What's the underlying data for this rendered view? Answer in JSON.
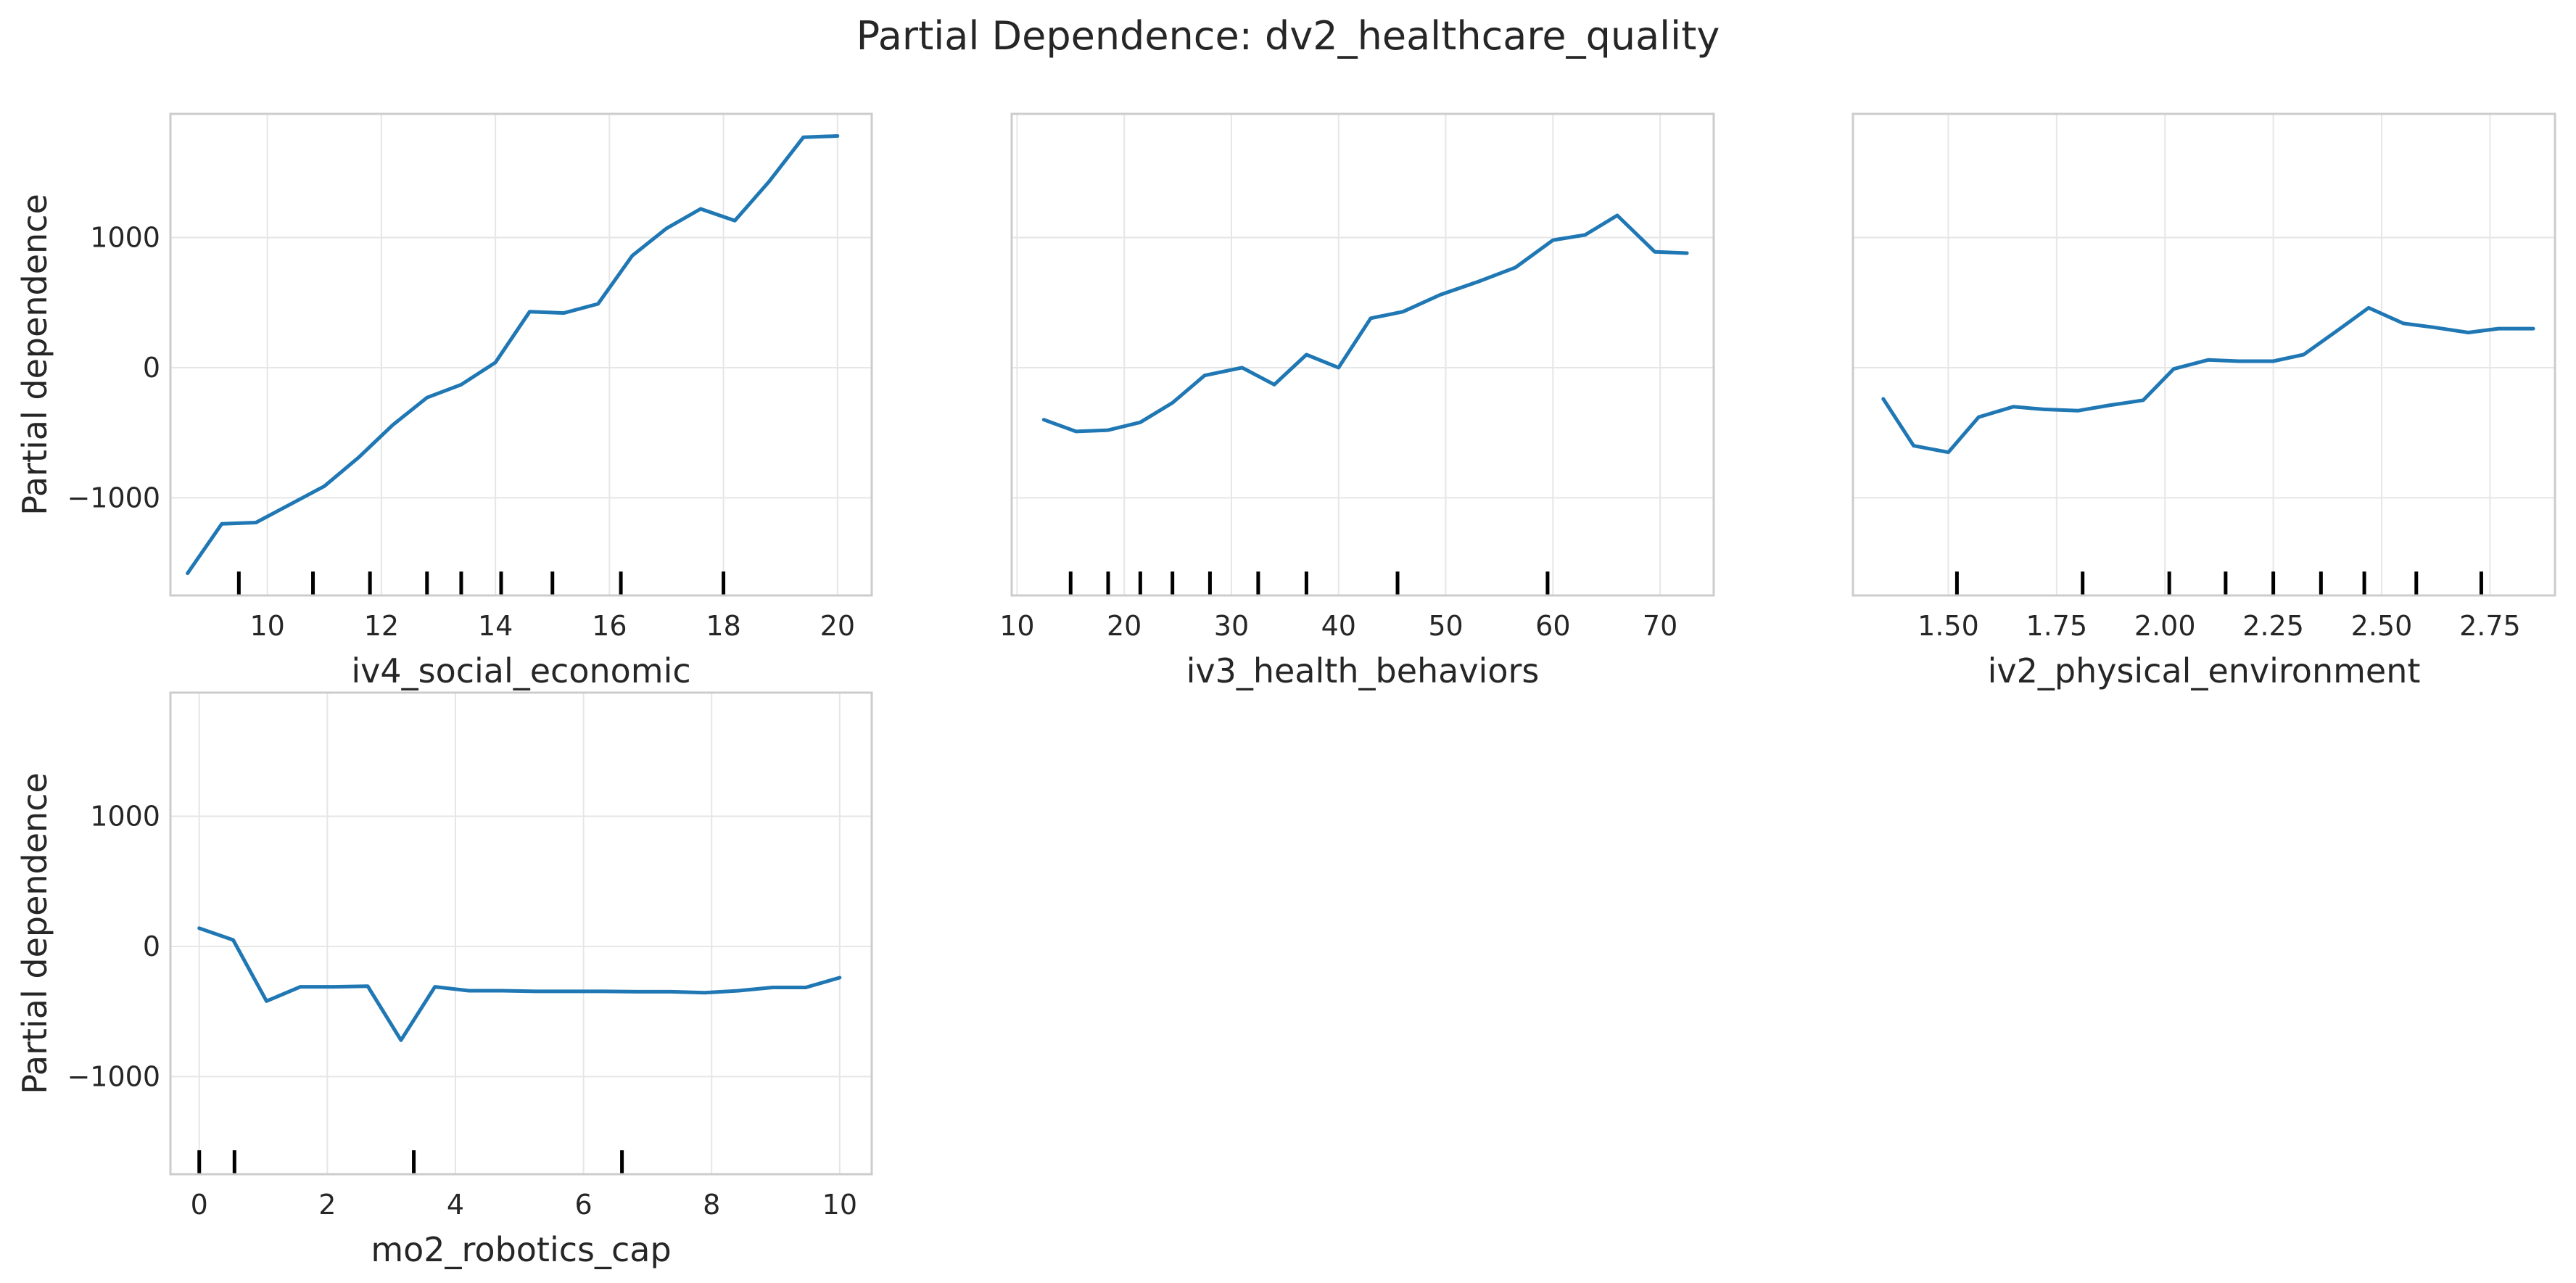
{
  "title": "Partial Dependence: dv2_healthcare_quality",
  "colors": {
    "line": "#1f77b4",
    "grid": "#e6e6e6",
    "frame": "#cccccc",
    "rug": "#000000",
    "text": "#262626"
  },
  "chart_data": [
    {
      "type": "line",
      "xlabel": "iv4_social_economic",
      "ylabel": "Partial dependence",
      "xlim": [
        8.3,
        20.6
      ],
      "ylim": [
        -1750,
        1950
      ],
      "xticks": [
        10,
        12,
        14,
        16,
        18,
        20
      ],
      "yticks": [
        -1000,
        0,
        1000
      ],
      "show_yticklabels": true,
      "grid": true,
      "x": [
        8.6,
        9.2,
        9.8,
        10.4,
        11.0,
        11.6,
        12.2,
        12.8,
        13.4,
        14.0,
        14.6,
        15.2,
        15.8,
        16.4,
        17.0,
        17.6,
        18.2,
        18.8,
        19.4,
        20.0
      ],
      "y": [
        -1580,
        -1200,
        -1190,
        -1050,
        -910,
        -690,
        -440,
        -230,
        -130,
        40,
        430,
        420,
        490,
        860,
        1070,
        1220,
        1130,
        1430,
        1770,
        1780
      ],
      "rug_ticks": [
        9.5,
        10.8,
        11.8,
        12.8,
        13.4,
        14.1,
        15.0,
        16.2,
        18.0
      ]
    },
    {
      "type": "line",
      "xlabel": "iv3_health_behaviors",
      "ylabel": "",
      "xlim": [
        9.5,
        75
      ],
      "ylim": [
        -1750,
        1950
      ],
      "xticks": [
        10,
        20,
        30,
        40,
        50,
        60,
        70
      ],
      "yticks": [
        -1000,
        0,
        1000
      ],
      "show_yticklabels": false,
      "grid": true,
      "x": [
        12.5,
        15.5,
        18.5,
        21.5,
        24.5,
        27.5,
        31.0,
        34.0,
        37.0,
        40.0,
        43.0,
        46.0,
        49.5,
        53.0,
        56.5,
        60.0,
        63.0,
        66.0,
        69.5,
        72.5
      ],
      "y": [
        -400,
        -490,
        -480,
        -420,
        -270,
        -60,
        0,
        -130,
        100,
        0,
        380,
        430,
        560,
        660,
        770,
        980,
        1020,
        1170,
        890,
        880
      ],
      "rug_ticks": [
        15.0,
        18.5,
        21.5,
        24.5,
        28.0,
        32.5,
        37.0,
        45.5,
        59.5
      ]
    },
    {
      "type": "line",
      "xlabel": "iv2_physical_environment",
      "ylabel": "",
      "xlim": [
        1.28,
        2.9
      ],
      "ylim": [
        -1750,
        1950
      ],
      "xticks": [
        1.5,
        1.75,
        2.0,
        2.25,
        2.5,
        2.75
      ],
      "xtick_labels": [
        "1.50",
        "1.75",
        "2.00",
        "2.25",
        "2.50",
        "2.75"
      ],
      "yticks": [
        -1000,
        0,
        1000
      ],
      "show_yticklabels": false,
      "grid": true,
      "x": [
        1.35,
        1.42,
        1.5,
        1.57,
        1.65,
        1.72,
        1.8,
        1.87,
        1.95,
        2.02,
        2.1,
        2.17,
        2.25,
        2.32,
        2.4,
        2.47,
        2.55,
        2.62,
        2.7,
        2.77,
        2.85
      ],
      "y": [
        -240,
        -600,
        -650,
        -380,
        -300,
        -320,
        -330,
        -290,
        -250,
        -10,
        60,
        50,
        50,
        100,
        290,
        460,
        340,
        310,
        270,
        300,
        300
      ],
      "rug_ticks": [
        1.52,
        1.81,
        2.01,
        2.14,
        2.25,
        2.36,
        2.46,
        2.58,
        2.73
      ]
    },
    {
      "type": "line",
      "xlabel": "mo2_robotics_cap",
      "ylabel": "Partial dependence",
      "xlim": [
        -0.45,
        10.5
      ],
      "ylim": [
        -1750,
        1950
      ],
      "xticks": [
        0,
        2,
        4,
        6,
        8,
        10
      ],
      "yticks": [
        -1000,
        0,
        1000
      ],
      "show_yticklabels": true,
      "grid": true,
      "x": [
        0.0,
        0.53,
        1.05,
        1.58,
        2.1,
        2.63,
        3.15,
        3.68,
        4.21,
        4.74,
        5.26,
        5.79,
        6.32,
        6.84,
        7.37,
        7.89,
        8.42,
        8.95,
        9.47,
        10.0
      ],
      "y": [
        140,
        50,
        -420,
        -310,
        -310,
        -305,
        -720,
        -310,
        -340,
        -340,
        -345,
        -345,
        -345,
        -348,
        -348,
        -355,
        -340,
        -315,
        -315,
        -240
      ],
      "rug_ticks": [
        0.0,
        0.55,
        3.35,
        6.6
      ]
    }
  ]
}
